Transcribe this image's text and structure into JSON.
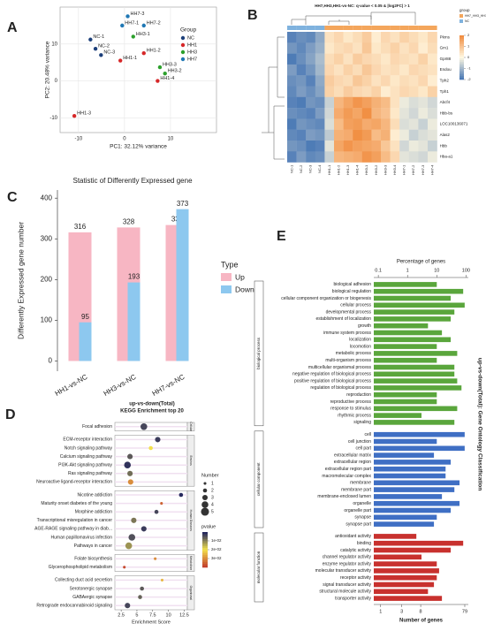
{
  "chart_data": [
    {
      "type": "scatter",
      "panel_label": "A",
      "xlabel": "PC1: 32.12% variance",
      "ylabel": "PC2: 20.48% variance",
      "xlim": [
        -14,
        20
      ],
      "ylim": [
        -14,
        20
      ],
      "xticks": [
        -10,
        0,
        10
      ],
      "yticks": [
        -10,
        0,
        10
      ],
      "grid": true,
      "legend_title": "Group",
      "series": [
        {
          "name": "NC",
          "color": "#1c3f7a",
          "x": [
            -7.4,
            -6.3,
            -5.1
          ],
          "y": [
            11.2,
            8.7,
            7.0
          ],
          "labels": [
            "NC-1",
            "NC-2",
            "NC-3"
          ]
        },
        {
          "name": "HH1",
          "color": "#d62728",
          "x": [
            -0.9,
            4.2,
            -10.9,
            7.2
          ],
          "y": [
            5.5,
            7.5,
            -9.5,
            0
          ],
          "labels": [
            "HH1-1",
            "HH1-2",
            "HH1-3",
            "HH1-4"
          ]
        },
        {
          "name": "HH3",
          "color": "#2ca02c",
          "x": [
            1.9,
            8.8,
            7.7
          ],
          "y": [
            12,
            2,
            3.7
          ],
          "labels": [
            "HH3-1",
            "HH3-2",
            "HH3-3"
          ]
        },
        {
          "name": "HH7",
          "color": "#1f77b4",
          "x": [
            -0.5,
            4.2,
            0.7
          ],
          "y": [
            15,
            15,
            17.5
          ],
          "labels": [
            "HH7-1",
            "HH7-2",
            "HH7-3"
          ]
        }
      ]
    },
    {
      "type": "heatmap",
      "panel_label": "B",
      "title": "HH7,HH3,HH1-vs-NC: q-value < 0.05 & |log2FC| > 1",
      "rows": [
        "Pkms",
        "Gm1",
        "Gpr88",
        "Endou",
        "Tph2",
        "Tph1",
        "Abcf4",
        "Hbb-bs",
        "LOC100136071",
        "Alas2",
        "Hbb",
        "Hba-a1"
      ],
      "columns": [
        "NC-1",
        "NC-2",
        "NC-3",
        "NC-4",
        "HH1-1",
        "HH1-2",
        "HH1-3",
        "HH1-4",
        "HH3-1",
        "HH3-2",
        "HH3-3",
        "HH3-4",
        "HH7-1",
        "HH7-2",
        "HH7-3",
        "HH7-4"
      ],
      "values": [
        [
          -1.8,
          -1.6,
          -1.7,
          -1.2,
          0.4,
          0.6,
          0.3,
          0.5,
          0.8,
          0.2,
          0.6,
          0.4,
          0.7,
          0.5,
          0.3,
          0.6
        ],
        [
          -1.5,
          -1.7,
          -1.4,
          -1.1,
          0.3,
          0.5,
          0.6,
          0.4,
          0.9,
          0.3,
          0.5,
          0.7,
          0.4,
          0.6,
          0.2,
          0.5
        ],
        [
          -1.9,
          -1.6,
          -1.3,
          -0.9,
          0.5,
          0.7,
          0.4,
          0.8,
          0.6,
          0.5,
          0.3,
          0.6,
          0.5,
          0.4,
          0.7,
          0.3
        ],
        [
          -1.4,
          -1.8,
          -1.5,
          -1.0,
          0.6,
          0.4,
          0.7,
          0.5,
          0.9,
          0.6,
          0.4,
          0.5,
          0.3,
          0.6,
          0.5,
          0.4
        ],
        [
          -1.6,
          -1.5,
          -1.8,
          -1.2,
          0.8,
          0.6,
          0.5,
          0.9,
          0.7,
          0.4,
          0.6,
          0.3,
          0.5,
          0.4,
          0.6,
          0.2
        ],
        [
          -1.7,
          -1.4,
          -1.6,
          -1.3,
          0.7,
          0.5,
          0.8,
          0.6,
          0.5,
          0.7,
          0.2,
          0.4,
          0.6,
          0.5,
          0.3,
          0.7
        ],
        [
          -1.8,
          -1.9,
          -1.5,
          -1.6,
          -0.6,
          1.2,
          1.5,
          1.8,
          1.6,
          1.3,
          1.1,
          0.4,
          -0.2,
          -0.4,
          -0.3,
          -0.5
        ],
        [
          -1.6,
          -1.7,
          -1.8,
          -1.4,
          -0.5,
          1.4,
          1.7,
          1.5,
          1.9,
          1.2,
          1.0,
          0.3,
          -0.3,
          -0.5,
          -0.2,
          -0.4
        ],
        [
          -1.9,
          -1.5,
          -1.6,
          -1.7,
          -0.4,
          1.1,
          1.6,
          1.7,
          1.4,
          1.5,
          1.2,
          0.5,
          -0.4,
          -0.3,
          -0.6,
          -0.2
        ],
        [
          -1.7,
          -1.8,
          -1.4,
          -1.5,
          -0.7,
          1.3,
          1.4,
          1.9,
          1.7,
          1.1,
          1.3,
          0.2,
          -0.2,
          -0.6,
          -0.4,
          -0.3
        ],
        [
          -1.5,
          -1.6,
          -1.9,
          -1.8,
          -0.3,
          1.5,
          1.8,
          1.6,
          1.5,
          1.4,
          0.9,
          0.4,
          -0.5,
          -0.2,
          -0.3,
          -0.6
        ],
        [
          -1.8,
          -1.4,
          -1.7,
          -1.6,
          -0.6,
          1.2,
          1.3,
          1.4,
          1.8,
          1.6,
          1.1,
          0.6,
          -0.3,
          -0.4,
          -0.5,
          -0.2
        ]
      ],
      "colormap": [
        "#4575b4",
        "#fff8e1",
        "#f08a3c"
      ],
      "color_range": [
        -2,
        2
      ],
      "colorbar_ticks": [
        -2,
        -1,
        0,
        1,
        2
      ],
      "legend_title": "group",
      "group_legend": [
        {
          "name": "HH7_HH3_HH1",
          "color": "#f4a65c"
        },
        {
          "name": "NC",
          "color": "#7fb2de"
        }
      ]
    },
    {
      "type": "bar",
      "panel_label": "C",
      "title": "Statistic of Differently Expressed gene",
      "ylabel": "Differently Expressed gene number",
      "categories": [
        "HH1-vs-NC",
        "HH3-vs-NC",
        "HH7-vs-NC"
      ],
      "series": [
        {
          "name": "Up",
          "color": "#f7b6c3",
          "values": [
            316,
            328,
            334
          ]
        },
        {
          "name": "Down",
          "color": "#8dc8ef",
          "values": [
            95,
            193,
            373
          ]
        }
      ],
      "ylim": [
        -25,
        420
      ],
      "yticks": [
        0,
        100,
        200,
        300,
        400
      ],
      "legend_title": "Type"
    },
    {
      "type": "bubble",
      "panel_label": "D",
      "title": "up-vs-down(Total)",
      "subtitle": "KEGG Enrichment top 20",
      "xlabel": "Enrichment Score",
      "xlim": [
        1.5,
        13
      ],
      "xticks": [
        2.5,
        5,
        7.5,
        10,
        12.5
      ],
      "size_title": "Number",
      "size_ticks": [
        1,
        2,
        3,
        4,
        5
      ],
      "color_title": "pvalue",
      "colormap": [
        "#1b1f5e",
        "#f2e14c",
        "#c0392b"
      ],
      "color_range": [
        0,
        0.04
      ],
      "color_ticks": [
        {
          "value": 0.01,
          "label": "1e-02"
        },
        {
          "value": 0.02,
          "label": "2e-02"
        },
        {
          "value": 0.03,
          "label": "3e-02"
        }
      ],
      "groups": [
        {
          "name": "Cellular",
          "categories": [
            "Focal adhesion"
          ],
          "x": [
            6.1
          ],
          "size": [
            4
          ],
          "pvalue": [
            0.004
          ]
        },
        {
          "name": "Environ.",
          "categories": [
            "ECM-receptor interaction",
            "Notch signaling pathway",
            "Calcium signaling pathway",
            "PI3K-Akt signaling pathway",
            "Ras signaling pathway",
            "Neuroactive ligand-receptor interaction"
          ],
          "x": [
            8.3,
            7.2,
            3.9,
            3.5,
            3.9,
            4.0
          ],
          "size": [
            3,
            2,
            3,
            4,
            3,
            3
          ],
          "pvalue": [
            0.003,
            0.02,
            0.006,
            0.002,
            0.008,
            0.03
          ]
        },
        {
          "name": "Human Diseases",
          "categories": [
            "Nicotine addiction",
            "Maturity onset diabetes of the young",
            "Morphine addiction",
            "Transcriptional misregulation in cancer",
            "AGE-RAGE signaling pathway in diab...",
            "Human papillomavirus infection",
            "Pathways in cancer"
          ],
          "x": [
            12.0,
            8.9,
            8.1,
            4.5,
            6.1,
            4.2,
            3.7
          ],
          "size": [
            2,
            1,
            2,
            3,
            3,
            4,
            4
          ],
          "pvalue": [
            0.001,
            0.035,
            0.004,
            0.009,
            0.003,
            0.005,
            0.012
          ]
        },
        {
          "name": "Metabolism",
          "categories": [
            "Folate biosynthesis",
            "Glycerophospholipid metabolism"
          ],
          "x": [
            7.9,
            3.0
          ],
          "size": [
            1,
            1
          ],
          "pvalue": [
            0.03,
            0.038
          ]
        },
        {
          "name": "Organismal",
          "categories": [
            "Collecting duct acid secretion",
            "Serotonergic synapse",
            "GABAergic synapse",
            "Retrograde endocannabinoid signaling"
          ],
          "x": [
            9.0,
            5.8,
            5.5,
            3.5
          ],
          "size": [
            1,
            2,
            2,
            3
          ],
          "pvalue": [
            0.025,
            0.006,
            0.007,
            0.004
          ]
        }
      ]
    },
    {
      "type": "hbar",
      "panel_label": "E",
      "title": "up-vs-down(Total): Gene Ontology Classification",
      "xlabel": "Percentage of genes",
      "x2label": "Number of genes",
      "log_scale": true,
      "xlim": [
        0.07,
        120
      ],
      "xticks": [
        0.1,
        1,
        10,
        100
      ],
      "x2lim": [
        0.7,
        95
      ],
      "x2ticks": [
        1,
        3,
        8,
        79
      ],
      "groups": [
        {
          "name": "biological process",
          "color": "#5aa63c",
          "categories": [
            "biological adhesion",
            "biological regulation",
            "cellular component organization or biogenesis",
            "cellular process",
            "developmental process",
            "establishment of localization",
            "growth",
            "immune system process",
            "localization",
            "locomotion",
            "metabolic process",
            "multi-organism process",
            "multicellular organismal process",
            "negative regulation of biological process",
            "positive regulation of biological process",
            "regulation of biological process",
            "reproduction",
            "reproductive process",
            "response to stimulus",
            "rhythmic process",
            "signaling"
          ],
          "values": [
            10,
            80,
            30,
            90,
            40,
            30,
            5,
            15,
            30,
            10,
            50,
            10,
            40,
            40,
            50,
            70,
            10,
            10,
            50,
            3,
            40
          ]
        },
        {
          "name": "cellular component",
          "color": "#3f6fc4",
          "categories": [
            "cell",
            "cell junction",
            "cell part",
            "extracellular matrix",
            "extracellular region",
            "extracellular region part",
            "macromolecular complex",
            "membrane",
            "membrane part",
            "membrane-enclosed lumen",
            "organelle",
            "organelle part",
            "synapse",
            "synapse part"
          ],
          "values": [
            90,
            10,
            90,
            8,
            30,
            20,
            20,
            60,
            40,
            15,
            60,
            30,
            10,
            8
          ]
        },
        {
          "name": "molecular function",
          "color": "#c8312e",
          "categories": [
            "antioxidant activity",
            "binding",
            "catalytic activity",
            "channel regulator activity",
            "enzyme regulator activity",
            "molecular transducer activity",
            "receptor activity",
            "signal transducer activity",
            "structural molecule activity",
            "transporter activity"
          ],
          "values": [
            2,
            80,
            30,
            3,
            10,
            12,
            10,
            8,
            5,
            15
          ]
        }
      ]
    }
  ]
}
